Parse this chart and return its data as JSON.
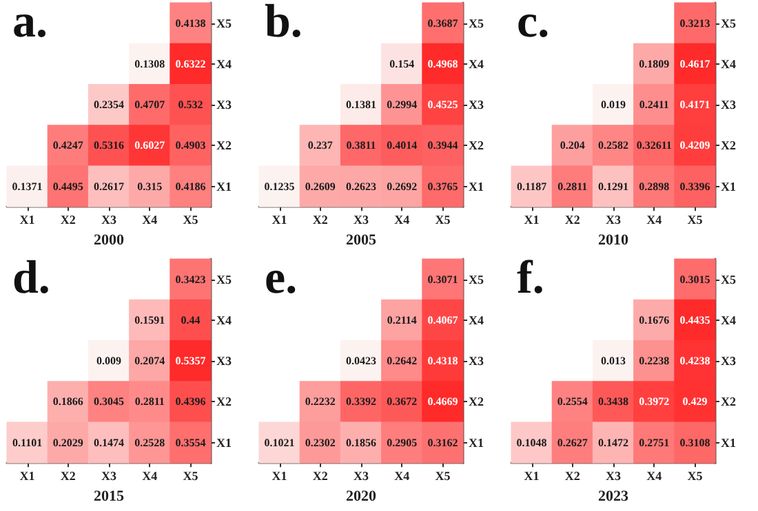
{
  "chart_data": [
    {
      "type": "heatmap",
      "title": "a.",
      "xlabel": "2000",
      "categories": [
        "X1",
        "X2",
        "X3",
        "X4",
        "X5"
      ],
      "y_categories": [
        "X5",
        "X4",
        "X3",
        "X2",
        "X1"
      ],
      "data_labels": true,
      "cells": [
        [
          null,
          null,
          null,
          null,
          0.4138
        ],
        [
          null,
          null,
          null,
          0.1308,
          0.6322
        ],
        [
          null,
          null,
          0.2354,
          0.4707,
          0.532
        ],
        [
          null,
          0.4247,
          0.5316,
          0.6027,
          0.4903
        ],
        [
          0.1371,
          0.4495,
          0.2617,
          0.315,
          0.4186
        ]
      ]
    },
    {
      "type": "heatmap",
      "title": "b.",
      "xlabel": "2005",
      "categories": [
        "X1",
        "X2",
        "X3",
        "X4",
        "X5"
      ],
      "y_categories": [
        "X5",
        "X4",
        "X3",
        "X2",
        "X1"
      ],
      "data_labels": true,
      "cells": [
        [
          null,
          null,
          null,
          null,
          0.3687
        ],
        [
          null,
          null,
          null,
          0.154,
          0.4968
        ],
        [
          null,
          null,
          0.1381,
          0.2994,
          0.4525
        ],
        [
          null,
          0.237,
          0.3811,
          0.4014,
          0.3944
        ],
        [
          0.1235,
          0.2609,
          0.2623,
          0.2692,
          0.3765
        ]
      ]
    },
    {
      "type": "heatmap",
      "title": "c.",
      "xlabel": "2010",
      "categories": [
        "X1",
        "X2",
        "X3",
        "X4",
        "X5"
      ],
      "y_categories": [
        "X5",
        "X4",
        "X3",
        "X2",
        "X1"
      ],
      "data_labels": true,
      "cells": [
        [
          null,
          null,
          null,
          null,
          0.3213
        ],
        [
          null,
          null,
          null,
          0.1809,
          0.4617
        ],
        [
          null,
          null,
          0.019,
          0.2411,
          0.4171
        ],
        [
          null,
          0.204,
          0.2582,
          0.32611,
          0.4209
        ],
        [
          0.1187,
          0.2811,
          0.1291,
          0.2898,
          0.3396
        ]
      ]
    },
    {
      "type": "heatmap",
      "title": "d.",
      "xlabel": "2015",
      "categories": [
        "X1",
        "X2",
        "X3",
        "X4",
        "X5"
      ],
      "y_categories": [
        "X5",
        "X4",
        "X3",
        "X2",
        "X1"
      ],
      "data_labels": true,
      "cells": [
        [
          null,
          null,
          null,
          null,
          0.3423
        ],
        [
          null,
          null,
          null,
          0.1591,
          0.44
        ],
        [
          null,
          null,
          0.009,
          0.2074,
          0.5357
        ],
        [
          null,
          0.1866,
          0.3045,
          0.2811,
          0.4396
        ],
        [
          0.1101,
          0.2029,
          0.1474,
          0.2528,
          0.3554
        ]
      ]
    },
    {
      "type": "heatmap",
      "title": "e.",
      "xlabel": "2020",
      "categories": [
        "X1",
        "X2",
        "X3",
        "X4",
        "X5"
      ],
      "y_categories": [
        "X5",
        "X4",
        "X3",
        "X2",
        "X1"
      ],
      "data_labels": true,
      "cells": [
        [
          null,
          null,
          null,
          null,
          0.3071
        ],
        [
          null,
          null,
          null,
          0.2114,
          0.4067
        ],
        [
          null,
          null,
          0.0423,
          0.2642,
          0.4318
        ],
        [
          null,
          0.2232,
          0.3392,
          0.3672,
          0.4669
        ],
        [
          0.1021,
          0.2302,
          0.1856,
          0.2905,
          0.3162
        ]
      ]
    },
    {
      "type": "heatmap",
      "title": "f.",
      "xlabel": "2023",
      "categories": [
        "X1",
        "X2",
        "X3",
        "X4",
        "X5"
      ],
      "y_categories": [
        "X5",
        "X4",
        "X3",
        "X2",
        "X1"
      ],
      "data_labels": true,
      "cells": [
        [
          null,
          null,
          null,
          null,
          0.3015
        ],
        [
          null,
          null,
          null,
          0.1676,
          0.4435
        ],
        [
          null,
          null,
          0.013,
          0.2238,
          0.4238
        ],
        [
          null,
          0.2554,
          0.3438,
          0.3972,
          0.429
        ],
        [
          0.1048,
          0.2627,
          0.1472,
          0.2751,
          0.3108
        ]
      ]
    }
  ]
}
